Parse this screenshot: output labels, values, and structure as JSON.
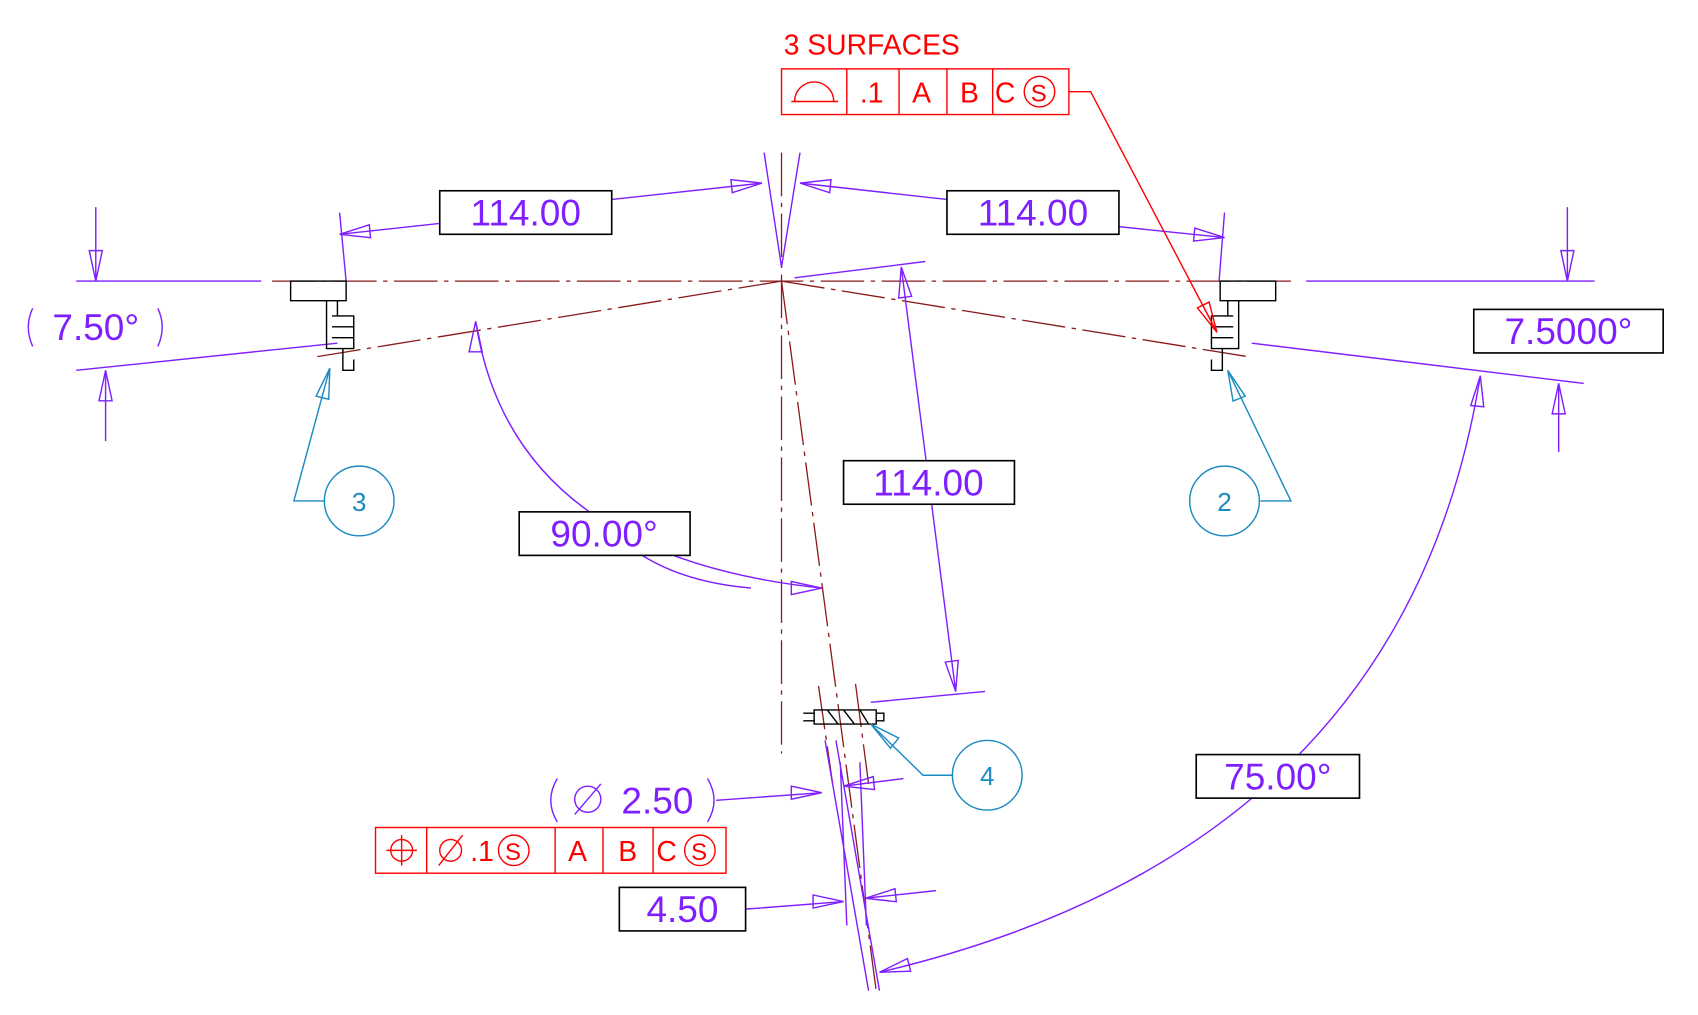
{
  "frame_top": {
    "label": "3 SURFACES",
    "tolerance": ".1",
    "datums": [
      "A",
      "B",
      "C"
    ],
    "modifier": "S"
  },
  "frame_bottom": {
    "tolerance": ".1",
    "tolerance_modifier": "S",
    "datums": [
      "A",
      "B",
      "C"
    ],
    "modifier": "S"
  },
  "dimensions": {
    "left_spacing": "114.00",
    "right_spacing": "114.00",
    "vertical_spacing": "114.00",
    "left_angle": "7.50°",
    "right_angle": "7.5000°",
    "center_angle": "90.00°",
    "sweep_angle": "75.00°",
    "hole_diameter": "2.50",
    "width": "4.50"
  },
  "balloons": [
    "3",
    "2",
    "4"
  ]
}
